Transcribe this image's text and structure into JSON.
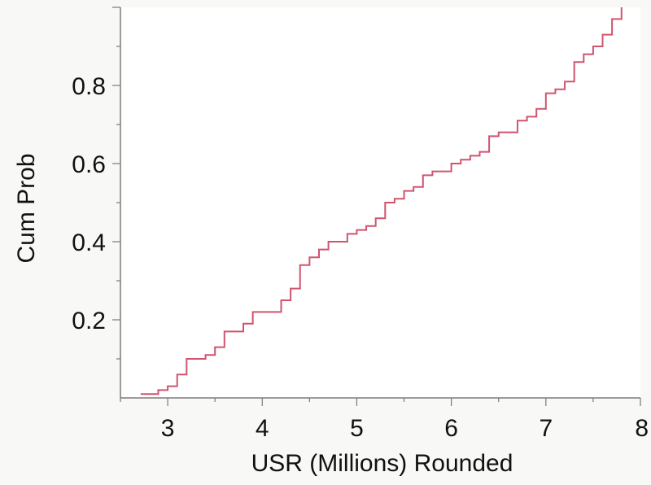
{
  "colors": {
    "background": "#f8f8f6",
    "plot_background": "#ffffff",
    "axis": "#7a7a7a",
    "series": "#d0546e"
  },
  "chart_data": {
    "type": "line",
    "subtype": "step-cdf",
    "title": "",
    "xlabel": "USR (Millions) Rounded",
    "ylabel": "Cum Prob",
    "xlim": [
      2.5,
      8
    ],
    "ylim": [
      0,
      1
    ],
    "x_ticks": [
      3,
      4,
      5,
      6,
      7,
      8
    ],
    "x_tick_labels": [
      "3",
      "4",
      "5",
      "6",
      "7",
      "8"
    ],
    "y_ticks": [
      0.2,
      0.4,
      0.6,
      0.8
    ],
    "y_tick_labels": [
      "0.2",
      "0.4",
      "0.6",
      "0.8"
    ],
    "grid": false,
    "legend": "none",
    "series": [
      {
        "x": [
          2.8,
          2.9,
          3.0,
          3.1,
          3.2,
          3.4,
          3.5,
          3.6,
          3.8,
          3.9,
          4.2,
          4.3,
          4.4,
          4.5,
          4.6,
          4.7,
          4.9,
          5.0,
          5.1,
          5.2,
          5.3,
          5.4,
          5.5,
          5.6,
          5.7,
          5.8,
          6.0,
          6.1,
          6.2,
          6.3,
          6.4,
          6.5,
          6.7,
          6.8,
          6.9,
          7.0,
          7.1,
          7.2,
          7.3,
          7.4,
          7.5,
          7.6,
          7.7,
          7.8
        ],
        "y": [
          0.01,
          0.02,
          0.03,
          0.06,
          0.1,
          0.11,
          0.13,
          0.17,
          0.19,
          0.22,
          0.25,
          0.28,
          0.34,
          0.36,
          0.38,
          0.4,
          0.42,
          0.43,
          0.44,
          0.46,
          0.5,
          0.51,
          0.53,
          0.54,
          0.57,
          0.58,
          0.6,
          0.61,
          0.62,
          0.63,
          0.67,
          0.68,
          0.71,
          0.72,
          0.74,
          0.78,
          0.79,
          0.81,
          0.86,
          0.88,
          0.9,
          0.93,
          0.97,
          1.0
        ]
      }
    ]
  }
}
